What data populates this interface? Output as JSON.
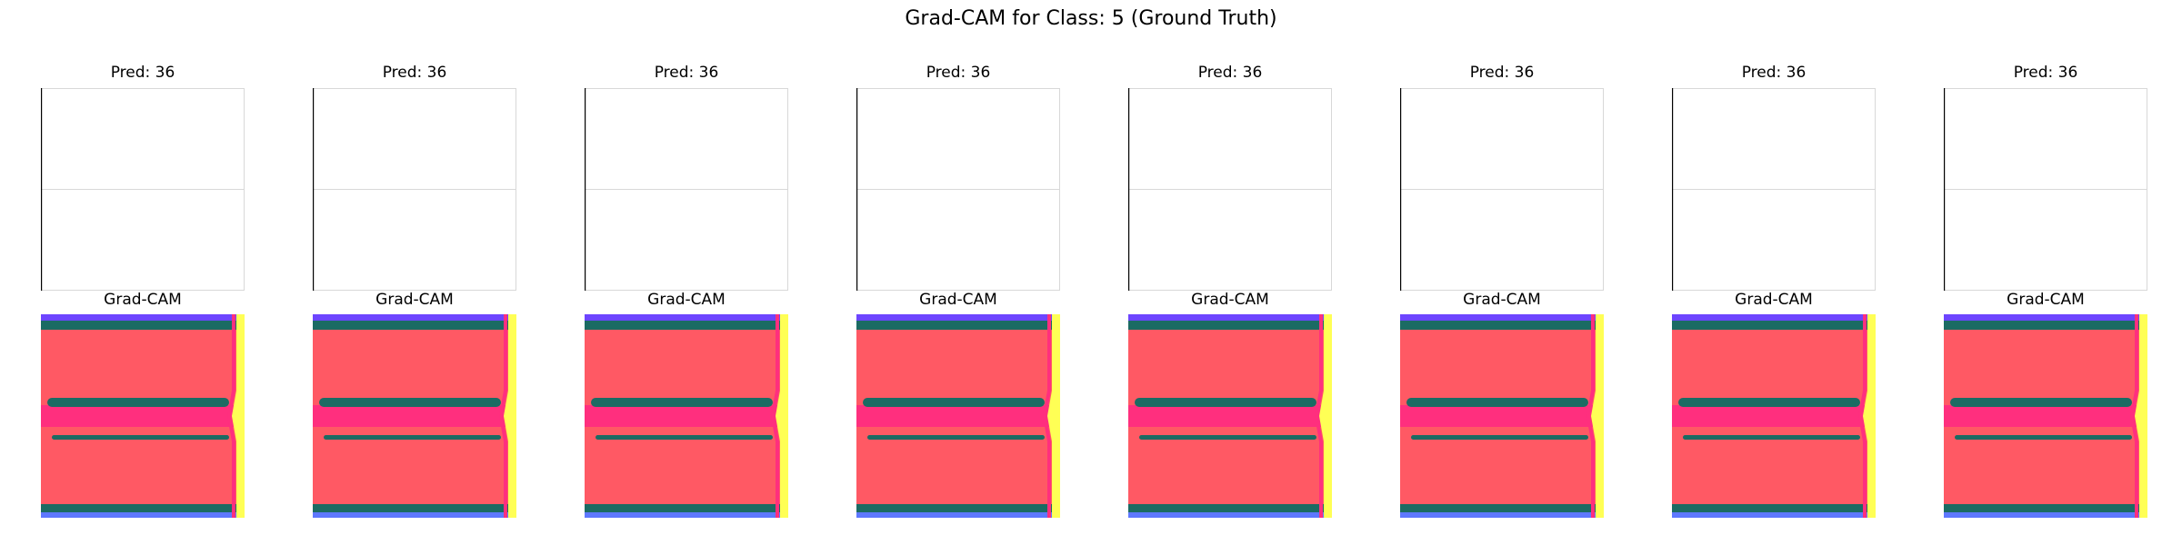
{
  "figure": {
    "title": "Grad-CAM for Class: 5 (Ground Truth)"
  },
  "chart_data": {
    "type": "other",
    "title": "Grad-CAM for Class: 5 (Ground Truth)",
    "panels": [
      {
        "prediction_title": "Pred: 36",
        "cam_title": "Grad-CAM"
      },
      {
        "prediction_title": "Pred: 36",
        "cam_title": "Grad-CAM"
      },
      {
        "prediction_title": "Pred: 36",
        "cam_title": "Grad-CAM"
      },
      {
        "prediction_title": "Pred: 36",
        "cam_title": "Grad-CAM"
      },
      {
        "prediction_title": "Pred: 36",
        "cam_title": "Grad-CAM"
      },
      {
        "prediction_title": "Pred: 36",
        "cam_title": "Grad-CAM"
      },
      {
        "prediction_title": "Pred: 36",
        "cam_title": "Grad-CAM"
      },
      {
        "prediction_title": "Pred: 36",
        "cam_title": "Grad-CAM"
      }
    ],
    "colors": {
      "heatmap_fill": "#ff5964",
      "band_dark": "#1b6b63",
      "band_pink": "#ff2f7e",
      "top_edge": "#6d45ff",
      "bottom_edge": "#5e78ff",
      "right_edge": "#ffff55",
      "axis_line": "#000000",
      "faint_line": "#d8d8d8"
    }
  }
}
